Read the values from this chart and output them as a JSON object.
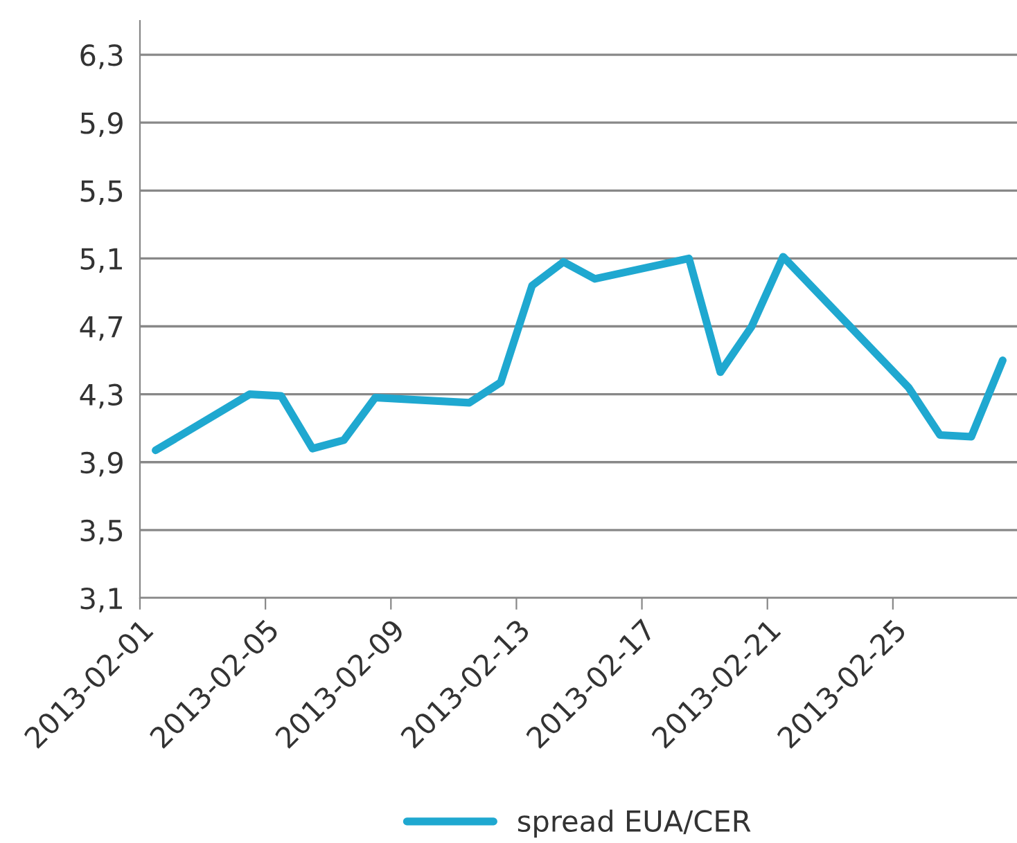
{
  "chart_data": {
    "type": "line",
    "x": [
      "2013-02-01T12:00",
      "2013-02-04T12:00",
      "2013-02-05T12:00",
      "2013-02-06T12:00",
      "2013-02-07T12:00",
      "2013-02-08T12:00",
      "2013-02-11T12:00",
      "2013-02-12T12:00",
      "2013-02-13T12:00",
      "2013-02-14T12:00",
      "2013-02-15T12:00",
      "2013-02-18T12:00",
      "2013-02-19T12:00",
      "2013-02-20T12:00",
      "2013-02-21T12:00",
      "2013-02-25T12:00",
      "2013-02-26T12:00",
      "2013-02-27T12:00",
      "2013-02-28T12:00"
    ],
    "series": [
      {
        "name": "spread EUA/CER",
        "color": "#1fa8d0",
        "values": [
          3.97,
          4.3,
          4.29,
          3.98,
          4.03,
          4.28,
          4.25,
          4.37,
          4.94,
          5.08,
          4.98,
          5.1,
          4.43,
          4.7,
          5.11,
          4.34,
          4.06,
          4.05,
          4.5
        ]
      }
    ],
    "xlim": [
      "2013-02-01",
      "2013-03-01"
    ],
    "xticks": [
      "2013-02-01",
      "2013-02-05",
      "2013-02-09",
      "2013-02-13",
      "2013-02-17",
      "2013-02-21",
      "2013-02-25"
    ],
    "ylim": [
      3.1,
      6.5
    ],
    "yticks": [
      {
        "value": 3.1,
        "label": "3,1"
      },
      {
        "value": 3.5,
        "label": "3,5"
      },
      {
        "value": 3.9,
        "label": "3,9"
      },
      {
        "value": 4.3,
        "label": "4,3"
      },
      {
        "value": 4.7,
        "label": "4,7"
      },
      {
        "value": 5.1,
        "label": "5,1"
      },
      {
        "value": 5.5,
        "label": "5,5"
      },
      {
        "value": 5.9,
        "label": "5,9"
      },
      {
        "value": 6.3,
        "label": "6,3"
      }
    ],
    "grid": "y",
    "legend": "bottom",
    "marker": "none",
    "line_style": "solid"
  }
}
